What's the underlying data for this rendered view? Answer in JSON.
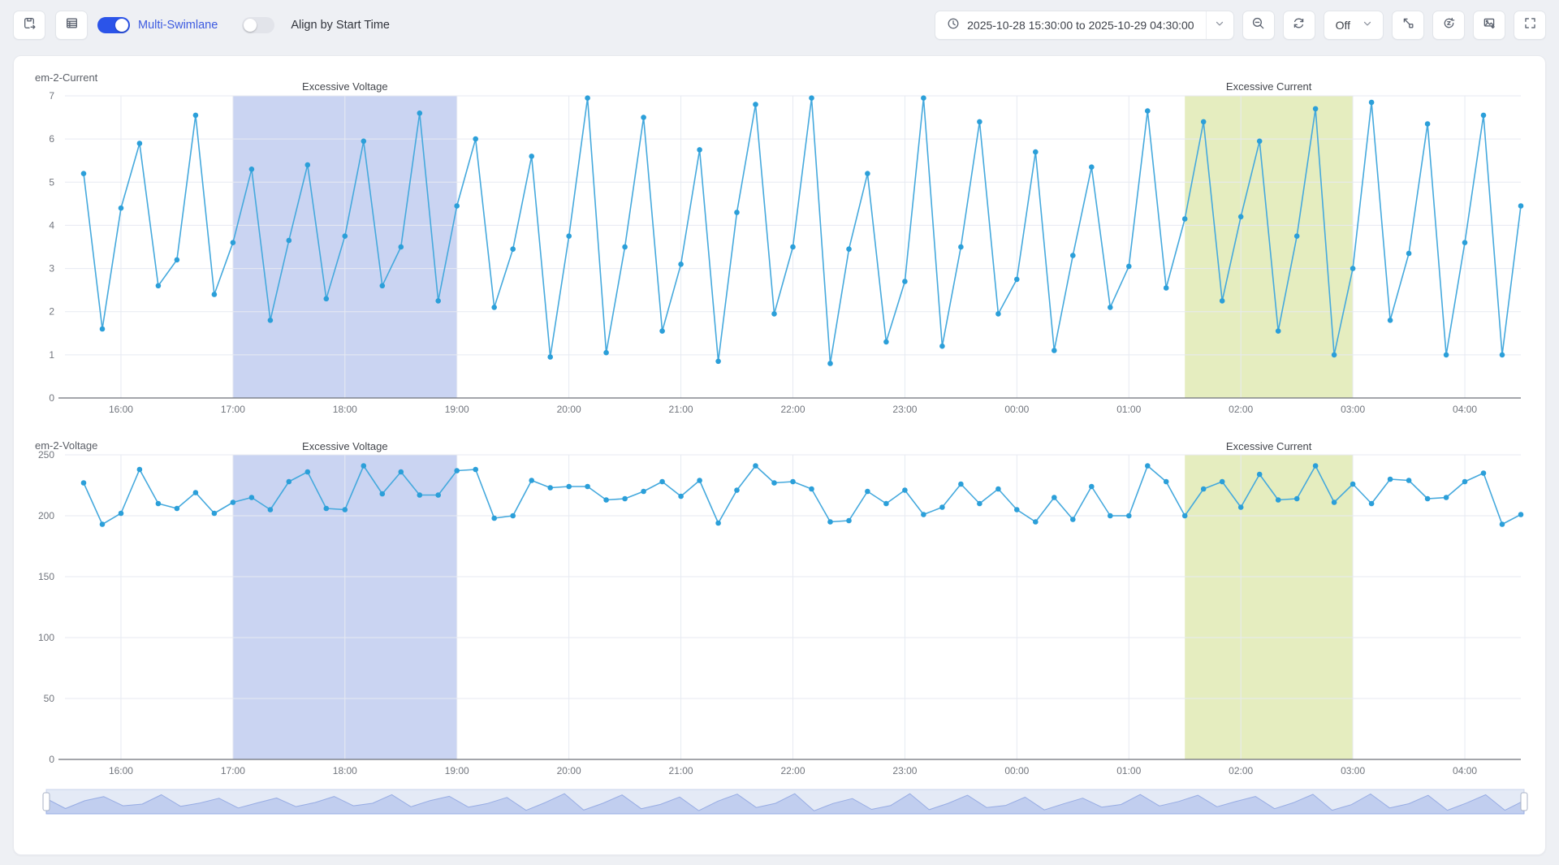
{
  "toolbar": {
    "save_view_button": "save-view",
    "table_view_button": "table-view",
    "multi_swimlane_label": "Multi-Swimlane",
    "multi_swimlane_on": true,
    "align_by_start_time_label": "Align by Start Time",
    "align_by_start_time_on": false,
    "time_range_label": "2025-10-28 15:30:00 to 2025-10-29 04:30:00",
    "refresh_interval_value": "Off"
  },
  "colors": {
    "page_background": "#eef0f4",
    "panel_background": "#ffffff",
    "accent_blue": "#2b54e9",
    "line_blue": "#45a9dd",
    "point_blue": "#2b9fd9",
    "grid_line": "#e7eaf2",
    "axis_line": "#6e7079",
    "axis_text": "#71757d",
    "voltage_band_fill": "rgba(116,142,222,0.38)",
    "current_band_fill": "rgba(189,209,95,0.40)"
  },
  "chart_data": [
    {
      "type": "line",
      "title": "em-2-Current",
      "x_axis_start": "15:30",
      "x_axis_end": "04:30",
      "point_interval_minutes": 10,
      "first_point_offset_minutes": 10,
      "xticks": [
        "16:00",
        "17:00",
        "18:00",
        "19:00",
        "20:00",
        "21:00",
        "22:00",
        "23:00",
        "00:00",
        "01:00",
        "02:00",
        "03:00",
        "04:00"
      ],
      "ylim": [
        0,
        7
      ],
      "yticks": [
        0,
        1,
        2,
        3,
        4,
        5,
        6,
        7
      ],
      "values": [
        5.2,
        1.6,
        4.4,
        5.9,
        2.6,
        3.2,
        6.55,
        2.4,
        3.6,
        5.3,
        1.8,
        3.65,
        5.4,
        2.3,
        3.75,
        5.95,
        2.6,
        3.5,
        6.6,
        2.25,
        4.45,
        6.0,
        2.1,
        3.45,
        5.6,
        0.95,
        3.75,
        6.95,
        1.05,
        3.5,
        6.5,
        1.55,
        3.1,
        5.75,
        0.85,
        4.3,
        6.8,
        1.95,
        3.5,
        6.95,
        0.8,
        3.45,
        5.2,
        1.3,
        2.7,
        6.95,
        1.2,
        3.5,
        6.4,
        1.95,
        2.75,
        5.7,
        1.1,
        3.3,
        5.35,
        2.1,
        3.05,
        6.65,
        2.55,
        4.15,
        6.4,
        2.25,
        4.2,
        5.95,
        1.55,
        3.75,
        6.7,
        1.0,
        3.0,
        6.85,
        1.8,
        3.35,
        6.35,
        1.0,
        3.6,
        6.55,
        1.0,
        4.45
      ],
      "line_color": "#45a9dd",
      "point_color": "#2b9fd9",
      "regions": [
        {
          "label": "Excessive Voltage",
          "start": "17:00",
          "end": "19:00",
          "color": "rgba(116,142,222,0.38)"
        },
        {
          "label": "Excessive Current",
          "start": "01:30",
          "end": "03:00",
          "color": "rgba(189,209,95,0.40)"
        }
      ],
      "legend": "none",
      "grid": true
    },
    {
      "type": "line",
      "title": "em-2-Voltage",
      "x_axis_start": "15:30",
      "x_axis_end": "04:30",
      "point_interval_minutes": 10,
      "first_point_offset_minutes": 10,
      "xticks": [
        "16:00",
        "17:00",
        "18:00",
        "19:00",
        "20:00",
        "21:00",
        "22:00",
        "23:00",
        "00:00",
        "01:00",
        "02:00",
        "03:00",
        "04:00"
      ],
      "ylim": [
        0,
        250
      ],
      "yticks": [
        0,
        50,
        100,
        150,
        200,
        250
      ],
      "values": [
        227,
        193,
        202,
        238,
        210,
        206,
        219,
        202,
        211,
        215,
        205,
        228,
        236,
        206,
        205,
        241,
        218,
        236,
        217,
        217,
        237,
        238,
        198,
        200,
        229,
        223,
        224,
        224,
        213,
        214,
        220,
        228,
        216,
        229,
        194,
        221,
        241,
        227,
        228,
        222,
        195,
        196,
        220,
        210,
        221,
        201,
        207,
        226,
        210,
        222,
        205,
        195,
        215,
        197,
        224,
        200,
        200,
        241,
        228,
        200,
        222,
        228,
        207,
        234,
        213,
        214,
        241,
        211,
        226,
        210,
        230,
        229,
        214,
        215,
        228,
        235,
        193,
        201
      ],
      "line_color": "#45a9dd",
      "point_color": "#2b9fd9",
      "regions": [
        {
          "label": "Excessive Voltage",
          "start": "17:00",
          "end": "19:00",
          "color": "rgba(116,142,222,0.38)"
        },
        {
          "label": "Excessive Current",
          "start": "01:30",
          "end": "03:00",
          "color": "rgba(189,209,95,0.40)"
        }
      ],
      "legend": "none",
      "grid": true
    }
  ],
  "slider": {
    "full_range_selected": true,
    "handle_count": 2,
    "preview_of": "em-2-Current"
  }
}
